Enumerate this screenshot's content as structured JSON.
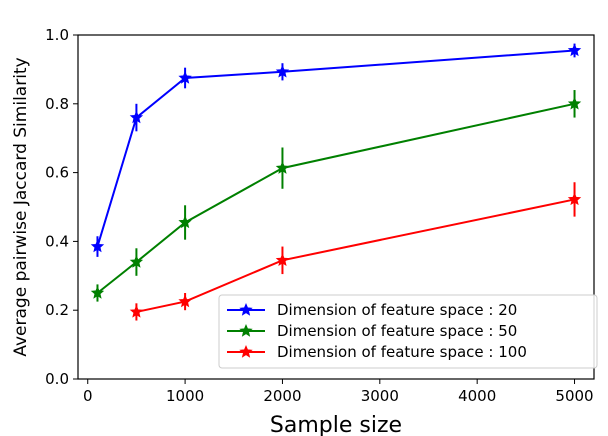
{
  "chart_data": {
    "type": "line",
    "xlabel": "Sample size",
    "ylabel": "Average pairwise Jaccard Similarity",
    "xlim": [
      -100,
      5200
    ],
    "ylim": [
      0.0,
      1.0
    ],
    "x_ticks": [
      "0",
      "1000",
      "2000",
      "3000",
      "4000",
      "5000"
    ],
    "y_ticks": [
      "0.0",
      "0.2",
      "0.4",
      "0.6",
      "0.8",
      "1.0"
    ],
    "grid": false,
    "legend_position": "lower-right",
    "series": [
      {
        "name": "Dimension of feature space : 20",
        "color": "#0000ff",
        "x": [
          100,
          500,
          1000,
          2000,
          5000
        ],
        "y": [
          0.385,
          0.76,
          0.875,
          0.893,
          0.955
        ],
        "err": [
          0.03,
          0.04,
          0.03,
          0.025,
          0.02
        ]
      },
      {
        "name": "Dimension of feature space : 50",
        "color": "#008000",
        "x": [
          100,
          500,
          1000,
          2000,
          5000
        ],
        "y": [
          0.25,
          0.34,
          0.455,
          0.613,
          0.8
        ],
        "err": [
          0.025,
          0.04,
          0.05,
          0.06,
          0.04
        ]
      },
      {
        "name": "Dimension of feature space : 100",
        "color": "#ff0000",
        "x": [
          500,
          1000,
          2000,
          5000
        ],
        "y": [
          0.195,
          0.225,
          0.345,
          0.522
        ],
        "err": [
          0.025,
          0.025,
          0.04,
          0.05
        ]
      }
    ]
  }
}
